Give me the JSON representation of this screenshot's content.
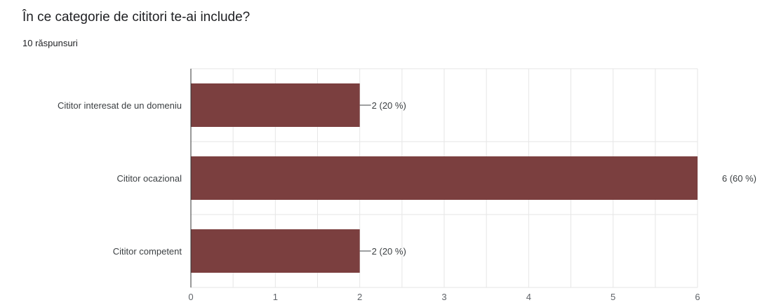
{
  "header": {
    "title": "În ce categorie de cititori te-ai include?",
    "responses": "10 răspunsuri"
  },
  "chart_data": {
    "type": "bar",
    "orientation": "horizontal",
    "categories": [
      "Cititor interesat de un domeniu",
      "Cititor ocazional",
      "Cititor competent"
    ],
    "values": [
      2,
      6,
      2
    ],
    "data_labels": [
      "2 (20 %)",
      "6 (60 %)",
      "2 (20 %)"
    ],
    "xlim": [
      0,
      6
    ],
    "x_ticks": [
      "0",
      "1",
      "2",
      "3",
      "4",
      "5",
      "6"
    ],
    "grid": true,
    "bar_color": "#7b3f3f"
  }
}
